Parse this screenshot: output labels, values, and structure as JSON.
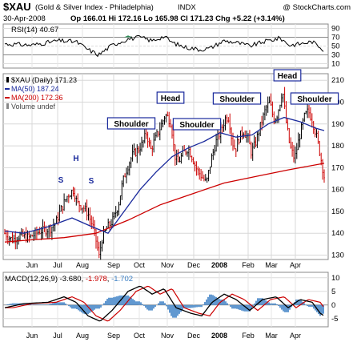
{
  "header": {
    "symbol": "$XAU",
    "name": "(Gold & Silver Index - Philadelphia)",
    "exchange": "INDX",
    "copyright": "@ StockCharts.com",
    "date": "30-Apr-2008",
    "stats": "Op 166.01  Hi 172.16  Lo 165.98  Cl 171.23  Chg +5.22 (+3.14%)"
  },
  "rsi": {
    "label": "RSI(14) 40.67",
    "ticks": [
      "90",
      "70",
      "50",
      "30",
      "10"
    ]
  },
  "price": {
    "legend": [
      {
        "text": "$XAU (Daily) 171.23",
        "color": "#000000"
      },
      {
        "text": "MA(50) 187.24",
        "color": "#1a2a9c"
      },
      {
        "text": "MA(200) 172.36",
        "color": "#cc0000"
      },
      {
        "text": "Volume undef",
        "color": "#444444"
      }
    ],
    "ticks": [
      "210",
      "200",
      "190",
      "180",
      "170",
      "160",
      "150",
      "140",
      "130"
    ],
    "annotations": [
      {
        "text": "S",
        "type": "letter"
      },
      {
        "text": "H",
        "type": "letter"
      },
      {
        "text": "S",
        "type": "letter"
      },
      {
        "text": "Shoulder",
        "type": "box"
      },
      {
        "text": "Head",
        "type": "box"
      },
      {
        "text": "Shoulder",
        "type": "box"
      },
      {
        "text": "Shoulder",
        "type": "box"
      },
      {
        "text": "Head",
        "type": "box"
      },
      {
        "text": "Shoulder",
        "type": "box"
      }
    ]
  },
  "macd": {
    "label_prefix": "MACD(12,26,9) ",
    "label_macd": "-3.680",
    "label_signal": "-1.978",
    "label_hist": "-1.702",
    "ticks": [
      "10",
      "5",
      "0",
      "-5"
    ]
  },
  "xaxis": {
    "months": [
      "Jun",
      "Jul",
      "Aug",
      "Sep",
      "Oct",
      "Nov",
      "Dec",
      "2008",
      "Feb",
      "Mar",
      "Apr"
    ]
  },
  "colors": {
    "up": "#000000",
    "down": "#cc0000",
    "ma50": "#1a2a9c",
    "ma200": "#cc0000",
    "macd": "#000000",
    "signal": "#cc0000",
    "hist": "#3a7fc4",
    "annotation_box": "#1a2a9c"
  },
  "chart_data": {
    "type": "line",
    "title": "$XAU (Gold & Silver Index - Philadelphia) INDX",
    "x": [
      "Jun",
      "Jul",
      "Aug",
      "Sep",
      "Oct",
      "Nov",
      "Dec",
      "2008",
      "Feb",
      "Mar",
      "Apr"
    ],
    "ylim": [
      128,
      213
    ],
    "series": [
      {
        "name": "$XAU (Daily)",
        "values": [
          145,
          152,
          130,
          150,
          183,
          190,
          168,
          190,
          180,
          200,
          171
        ]
      },
      {
        "name": "MA(50)",
        "values": [
          140,
          145,
          142,
          142,
          162,
          180,
          178,
          188,
          183,
          192,
          187
        ]
      },
      {
        "name": "MA(200)",
        "values": [
          136,
          137,
          139,
          144,
          150,
          155,
          159,
          164,
          166,
          170,
          172
        ]
      },
      {
        "name": "RSI(14)",
        "values": [
          55,
          62,
          32,
          58,
          68,
          72,
          40,
          60,
          48,
          68,
          41
        ]
      },
      {
        "name": "MACD(12,26,9)",
        "values": [
          0,
          3,
          -6,
          -1,
          7,
          6,
          -3,
          4,
          -1,
          3,
          -4
        ]
      }
    ]
  }
}
